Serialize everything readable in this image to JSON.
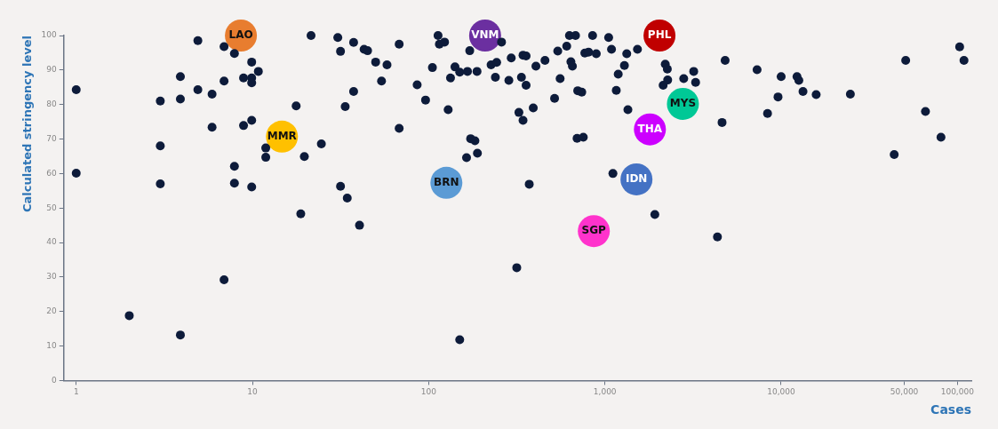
{
  "chart_data": {
    "type": "scatter",
    "xlabel": "Cases",
    "ylabel": "Calculated stringency level",
    "log": "x",
    "grid": false,
    "legend": false,
    "marker": "circle",
    "xlim": [
      0.85,
      120000
    ],
    "ylim": [
      0,
      100
    ],
    "xticks": [
      1,
      10,
      100,
      {
        "value": 1000,
        "label": "1,000"
      },
      {
        "value": 10000,
        "label": "10,000"
      },
      {
        "value": 50000,
        "label": "50,000"
      },
      {
        "value": 100000,
        "label": "100,000"
      }
    ],
    "yticks": [
      0,
      10,
      20,
      30,
      40,
      50,
      60,
      70,
      80,
      90,
      100
    ],
    "series": [
      {
        "color": "#0d1b3a",
        "x": [
          4.9,
          6.9,
          7.9,
          9.9,
          10.8,
          3.9,
          6.9,
          8.9,
          9.9,
          9.9,
          1,
          4.9,
          5.9,
          3,
          3.9,
          9.9,
          8.9,
          5.9,
          3,
          11.9,
          11.9,
          7.9,
          1,
          3,
          7.9,
          9.9,
          6.9,
          2,
          3.9,
          21.5,
          30.5,
          37.5,
          43,
          45,
          31.6,
          37.5,
          33.6,
          17.7,
          24.6,
          19.7,
          31.6,
          34.5,
          18.8,
          40.5,
          50,
          58,
          54,
          68,
          68,
          86,
          96,
          105,
          113,
          115,
          123,
          129,
          133,
          141,
          150,
          166,
          171,
          188,
          173,
          183,
          164,
          189,
          150,
          259,
          226,
          243,
          239,
          285,
          294,
          336,
          343,
          357,
          357,
          325,
          343,
          392,
          372,
          316,
          406,
          457,
          540,
          607,
          557,
          518,
          641,
          654,
          629,
          681,
          851,
          701,
          739,
          695,
          754,
          769,
          807,
          893,
          1050,
          1090,
          1330,
          1290,
          1190,
          1160,
          1530,
          1350,
          1110,
          1920,
          2200,
          2260,
          2140,
          2270,
          2800,
          3190,
          3270,
          4810,
          4620,
          4350,
          7300,
          8370,
          10000,
          9600,
          12300,
          12600,
          13300,
          15800,
          24700,
          43800,
          50900,
          65900,
          80700,
          103000,
          109000
        ],
        "values": [
          98.5,
          96.8,
          94.8,
          92.3,
          89.6,
          88.1,
          86.8,
          87.7,
          87.7,
          86.3,
          84.3,
          84.3,
          83.0,
          81.0,
          81.6,
          75.4,
          73.9,
          73.4,
          68.0,
          67.4,
          64.7,
          62.1,
          60.1,
          57.0,
          57.2,
          56.1,
          29.2,
          18.8,
          13.2,
          100,
          99.4,
          98.0,
          96.0,
          95.6,
          95.4,
          83.8,
          79.4,
          79.6,
          68.6,
          64.9,
          56.3,
          52.9,
          48.3,
          45.0,
          92.3,
          91.5,
          86.8,
          97.5,
          73.1,
          85.7,
          81.3,
          90.7,
          100,
          97.5,
          98.1,
          78.5,
          87.7,
          90.9,
          89.4,
          89.6,
          95.6,
          89.6,
          70.1,
          69.5,
          64.6,
          65.9,
          11.8,
          98.1,
          91.5,
          92.2,
          87.9,
          87.0,
          93.5,
          87.9,
          94.3,
          94.1,
          85.6,
          77.7,
          75.4,
          79.0,
          56.9,
          32.7,
          91.1,
          92.8,
          95.5,
          96.9,
          87.5,
          81.8,
          92.4,
          91.1,
          100,
          100,
          100,
          84.0,
          83.6,
          70.2,
          70.5,
          94.9,
          95.2,
          94.7,
          99.4,
          96.0,
          94.7,
          91.3,
          88.8,
          84.1,
          96.0,
          78.5,
          60.0,
          48.1,
          91.7,
          90.3,
          85.6,
          87.1,
          87.5,
          89.6,
          86.4,
          92.8,
          74.8,
          41.6,
          90.1,
          77.4,
          88.1,
          82.2,
          88.1,
          87.0,
          83.8,
          82.9,
          83.0,
          65.5,
          92.8,
          78.0,
          70.5,
          96.7,
          92.8
        ]
      },
      {
        "name": "LAO",
        "color": "#e87d2f",
        "x": [
          8.6
        ],
        "values": [
          100
        ]
      },
      {
        "name": "VNM",
        "color": "#6b2fa0",
        "x": [
          209
        ],
        "values": [
          100
        ]
      },
      {
        "name": "PHL",
        "color": "#c00000",
        "x": [
          2040
        ],
        "values": [
          100
        ]
      },
      {
        "name": "MMR",
        "color": "#ffc000",
        "x": [
          14.7
        ],
        "values": [
          70.7
        ]
      },
      {
        "name": "BRN",
        "color": "#5b9bd5",
        "x": [
          126
        ],
        "values": [
          57.3
        ]
      },
      {
        "name": "IDN",
        "color": "#4472c4",
        "x": [
          1510
        ],
        "values": [
          58.3
        ]
      },
      {
        "name": "SGP",
        "color": "#ff33cc",
        "x": [
          865
        ],
        "values": [
          43.3
        ]
      },
      {
        "name": "THA",
        "color": "#cc00ff",
        "x": [
          1800
        ],
        "values": [
          72.8
        ]
      },
      {
        "name": "MYS",
        "color": "#00c896",
        "x": [
          2770
        ],
        "values": [
          80.2
        ]
      }
    ]
  }
}
